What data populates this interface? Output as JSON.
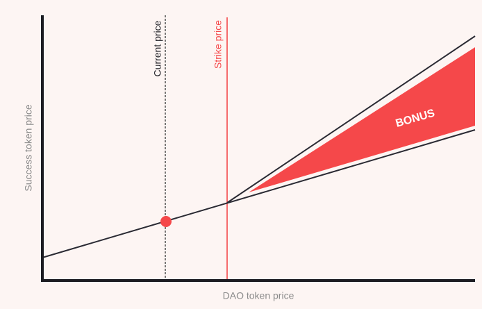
{
  "axes": {
    "x_label": "DAO token price",
    "y_label": "Success token price"
  },
  "markers": {
    "current": "Current price",
    "strike": "Strike price"
  },
  "area_label": "BONUS"
}
